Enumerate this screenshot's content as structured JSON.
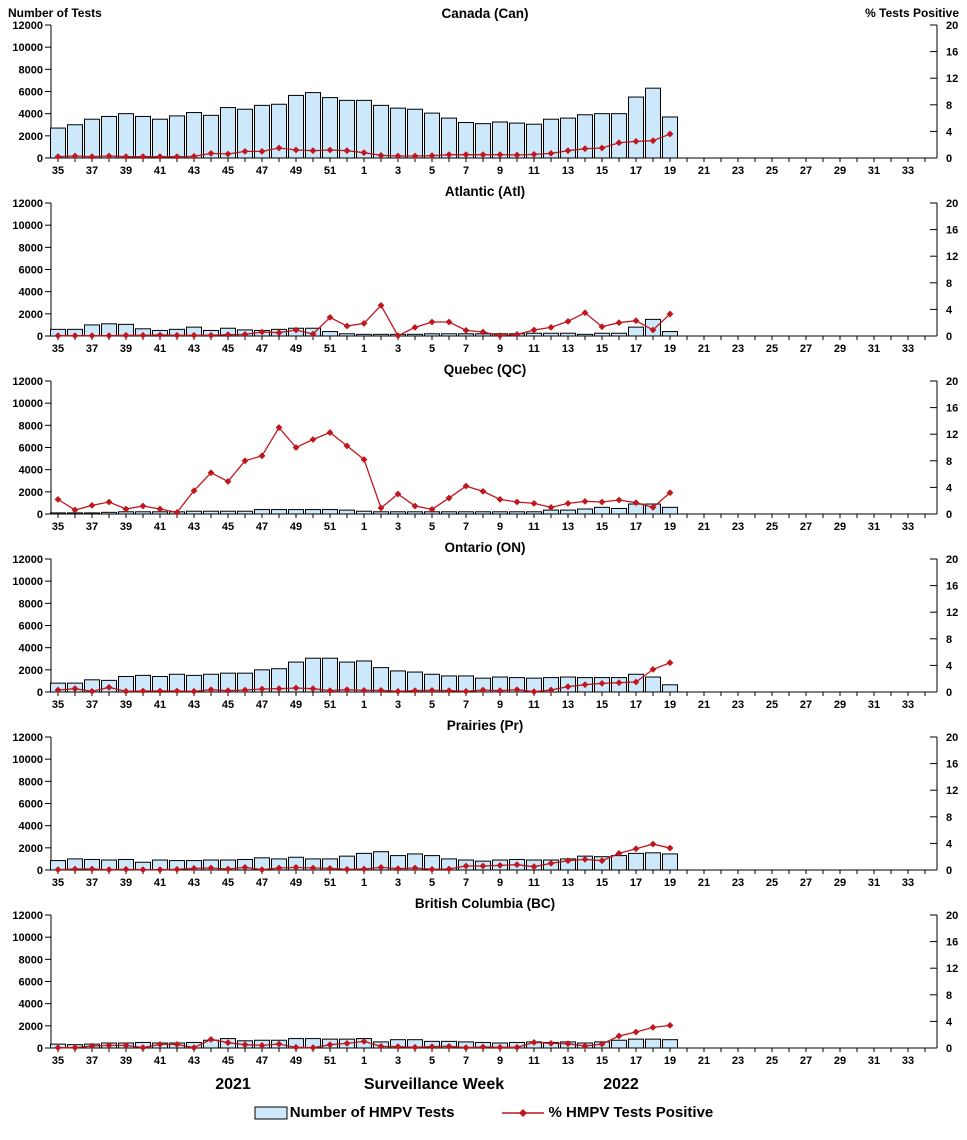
{
  "legend": {
    "bar_label": "Number of HMPV Tests",
    "line_label": "% HMPV Tests Positive"
  },
  "colors": {
    "bar_fill": "#CDE8FA",
    "bar_border": "#000000",
    "line": "#C0161D",
    "text": "#000000"
  },
  "chart_data": {
    "type": "bar+line",
    "x": {
      "axis_label": "Surveillance Week",
      "year_left": "2021",
      "year_right": "2022",
      "tick_labels": [
        "35",
        "37",
        "39",
        "41",
        "43",
        "45",
        "47",
        "49",
        "51",
        "1",
        "3",
        "5",
        "7",
        "9",
        "11",
        "13",
        "15",
        "17",
        "19",
        "21",
        "23",
        "25",
        "27",
        "29",
        "31",
        "33"
      ],
      "weeks": [
        35,
        36,
        37,
        38,
        39,
        40,
        41,
        42,
        43,
        44,
        45,
        46,
        47,
        48,
        49,
        50,
        51,
        52,
        1,
        2,
        3,
        4,
        5,
        6,
        7,
        8,
        9,
        10,
        11,
        12,
        13,
        14,
        15,
        16,
        17,
        18,
        19
      ]
    },
    "y_left": {
      "label": "Number of Tests",
      "range": [
        0,
        12000
      ],
      "ticks": [
        0,
        2000,
        4000,
        6000,
        8000,
        10000,
        12000
      ]
    },
    "y_right": {
      "label": "% Tests Positive",
      "range": [
        0,
        20
      ],
      "ticks": [
        0,
        4,
        8,
        12,
        16,
        20
      ]
    },
    "panels": [
      {
        "id": "canada",
        "title": "Canada (Can)",
        "tests": [
          2700,
          3000,
          3500,
          3750,
          4000,
          3750,
          3500,
          3800,
          4100,
          3850,
          4550,
          4400,
          4750,
          4850,
          5650,
          5900,
          5450,
          5200,
          5200,
          4750,
          4500,
          4400,
          4050,
          3600,
          3200,
          3100,
          3250,
          3150,
          3050,
          3500,
          3600,
          3900,
          4000,
          4000,
          5500,
          6300,
          3700
        ],
        "pct_positive": [
          0.2,
          0.3,
          0.2,
          0.3,
          0.2,
          0.2,
          0.2,
          0.2,
          0.25,
          0.7,
          0.6,
          1.0,
          1.0,
          1.5,
          1.2,
          1.1,
          1.2,
          1.1,
          0.8,
          0.4,
          0.3,
          0.3,
          0.35,
          0.5,
          0.5,
          0.5,
          0.5,
          0.45,
          0.55,
          0.7,
          1.1,
          1.4,
          1.5,
          2.3,
          2.5,
          2.6,
          3.6
        ]
      },
      {
        "id": "atlantic",
        "title": "Atlantic (Atl)",
        "tests": [
          600,
          600,
          1000,
          1100,
          1050,
          650,
          500,
          600,
          800,
          500,
          700,
          550,
          500,
          600,
          700,
          700,
          400,
          200,
          150,
          150,
          150,
          150,
          200,
          200,
          200,
          200,
          200,
          200,
          250,
          250,
          250,
          150,
          250,
          250,
          800,
          1500,
          400
        ],
        "pct_positive": [
          0.05,
          0.05,
          0.05,
          0.05,
          0.1,
          0.1,
          0.15,
          0.1,
          0.1,
          0.1,
          0.2,
          0.25,
          0.6,
          0.5,
          0.9,
          0.3,
          2.8,
          1.5,
          1.9,
          4.6,
          0.05,
          1.3,
          2.1,
          2.1,
          0.85,
          0.6,
          0.05,
          0.25,
          0.9,
          1.3,
          2.2,
          3.5,
          1.4,
          2.0,
          2.3,
          0.9,
          3.3
        ]
      },
      {
        "id": "quebec",
        "title": "Quebec (QC)",
        "tests": [
          100,
          100,
          100,
          150,
          200,
          200,
          200,
          200,
          250,
          250,
          250,
          250,
          400,
          400,
          400,
          400,
          400,
          350,
          250,
          200,
          200,
          200,
          200,
          200,
          200,
          200,
          200,
          200,
          200,
          350,
          350,
          450,
          600,
          500,
          900,
          900,
          600
        ],
        "pct_positive": [
          2.2,
          0.6,
          1.3,
          1.8,
          0.75,
          1.2,
          0.75,
          0.25,
          3.5,
          6.2,
          4.9,
          8.0,
          8.75,
          13.0,
          10.0,
          11.2,
          12.25,
          10.25,
          8.2,
          0.9,
          3.0,
          1.2,
          0.7,
          2.4,
          4.2,
          3.4,
          2.2,
          1.8,
          1.6,
          1.0,
          1.6,
          1.9,
          1.8,
          2.1,
          1.7,
          1.0,
          3.2
        ]
      },
      {
        "id": "ontario",
        "title": "Ontario (ON)",
        "tests": [
          800,
          800,
          1100,
          1050,
          1400,
          1500,
          1400,
          1600,
          1500,
          1600,
          1700,
          1700,
          2000,
          2100,
          2700,
          3050,
          3050,
          2700,
          2800,
          2200,
          1900,
          1800,
          1600,
          1450,
          1450,
          1250,
          1350,
          1300,
          1250,
          1300,
          1350,
          1300,
          1300,
          1300,
          1600,
          1350,
          650
        ],
        "pct_positive": [
          0.3,
          0.5,
          0.1,
          0.7,
          0.1,
          0.15,
          0.15,
          0.15,
          0.1,
          0.35,
          0.2,
          0.3,
          0.45,
          0.5,
          0.6,
          0.5,
          0.2,
          0.35,
          0.25,
          0.25,
          0.1,
          0.2,
          0.25,
          0.2,
          0.1,
          0.3,
          0.2,
          0.35,
          0.05,
          0.3,
          0.8,
          1.1,
          1.3,
          1.4,
          1.5,
          3.4,
          4.4
        ]
      },
      {
        "id": "prairies",
        "title": "Prairies (Pr)",
        "tests": [
          850,
          1000,
          950,
          900,
          950,
          700,
          900,
          850,
          850,
          900,
          900,
          950,
          1100,
          1000,
          1150,
          1000,
          1000,
          1250,
          1500,
          1650,
          1300,
          1450,
          1300,
          1000,
          900,
          800,
          900,
          950,
          900,
          900,
          1000,
          1250,
          1200,
          1300,
          1500,
          1550,
          1450
        ],
        "pct_positive": [
          0.05,
          0.15,
          0.15,
          0.05,
          0.1,
          0.05,
          0.05,
          0.1,
          0.25,
          0.3,
          0.15,
          0.4,
          0.05,
          0.3,
          0.4,
          0.3,
          0.25,
          0.1,
          0.15,
          0.4,
          0.2,
          0.3,
          0.1,
          0.15,
          0.6,
          0.6,
          0.7,
          0.8,
          0.5,
          1.0,
          1.4,
          1.6,
          1.4,
          2.5,
          3.2,
          3.9,
          3.3
        ]
      },
      {
        "id": "bc",
        "title": "British Columbia (BC)",
        "tests": [
          350,
          300,
          350,
          450,
          450,
          500,
          450,
          450,
          500,
          700,
          850,
          650,
          700,
          700,
          850,
          850,
          800,
          800,
          850,
          550,
          750,
          750,
          600,
          600,
          550,
          500,
          450,
          500,
          550,
          500,
          550,
          450,
          550,
          700,
          800,
          800,
          750
        ],
        "pct_positive": [
          0.05,
          0.05,
          0.3,
          0.4,
          0.4,
          0.05,
          0.55,
          0.55,
          0.05,
          1.3,
          0.8,
          0.5,
          0.4,
          0.6,
          0.1,
          0.05,
          0.5,
          0.7,
          1.0,
          0.25,
          0.2,
          0.1,
          0.2,
          0.25,
          0.05,
          0.15,
          0.1,
          0.1,
          0.85,
          0.7,
          0.65,
          0.3,
          0.6,
          1.8,
          2.4,
          3.1,
          3.4
        ]
      }
    ]
  }
}
